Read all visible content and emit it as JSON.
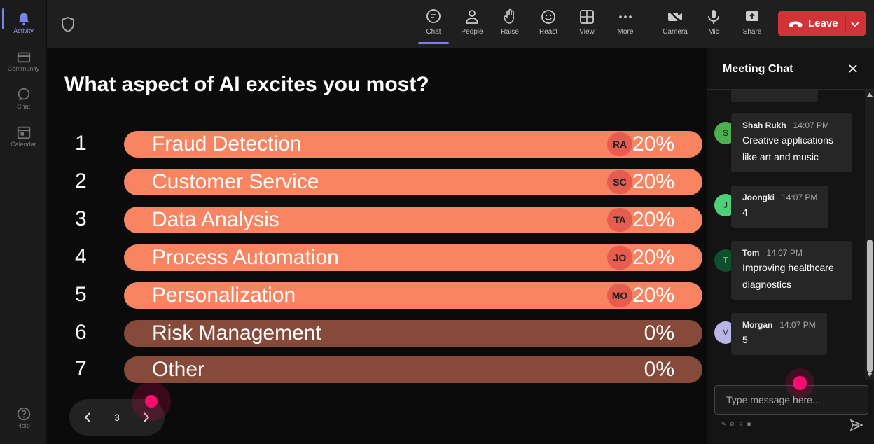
{
  "rail": {
    "items": [
      {
        "label": "Activity",
        "icon": "bell-icon"
      },
      {
        "label": "Community",
        "icon": "community-icon"
      },
      {
        "label": "Chat",
        "icon": "chat-icon"
      },
      {
        "label": "Calendar",
        "icon": "calendar-icon"
      },
      {
        "label": "Help",
        "icon": "help-icon"
      }
    ]
  },
  "toolbar": {
    "buttons": [
      {
        "label": "Chat",
        "icon": "chat-icon"
      },
      {
        "label": "People",
        "icon": "people-icon"
      },
      {
        "label": "Raise",
        "icon": "raise-hand-icon"
      },
      {
        "label": "React",
        "icon": "smiley-icon"
      },
      {
        "label": "View",
        "icon": "view-grid-icon"
      },
      {
        "label": "More",
        "icon": "more-icon"
      },
      {
        "label": "Camera",
        "icon": "camera-off-icon"
      },
      {
        "label": "Mic",
        "icon": "mic-icon"
      },
      {
        "label": "Share",
        "icon": "share-icon"
      }
    ],
    "leave_label": "Leave"
  },
  "poll": {
    "question": "What aspect of AI excites you most?",
    "options": [
      {
        "num": "1",
        "label": "Fraud Detection",
        "badge": "RA",
        "pct": "20%"
      },
      {
        "num": "2",
        "label": "Customer Service",
        "badge": "SC",
        "pct": "20%"
      },
      {
        "num": "3",
        "label": "Data Analysis",
        "badge": "TA",
        "pct": "20%"
      },
      {
        "num": "4",
        "label": "Process Automation",
        "badge": "JO",
        "pct": "20%"
      },
      {
        "num": "5",
        "label": "Personalization",
        "badge": "MO",
        "pct": "20%"
      },
      {
        "num": "6",
        "label": "Risk Management",
        "badge": "",
        "pct": "0%"
      },
      {
        "num": "7",
        "label": "Other",
        "badge": "",
        "pct": "0%"
      }
    ],
    "page": "3"
  },
  "colors": {
    "selected_bar": "#f98462",
    "unselected_bar": "#854a3a",
    "accent": "#7b83eb",
    "leave": "#d13438"
  },
  "chat": {
    "title": "Meeting Chat",
    "messages": [
      {
        "initial": "S",
        "name": "Shah Rukh",
        "time": "14:07 PM",
        "text": "Creative applications like art and music",
        "color": "#4caf50"
      },
      {
        "initial": "J",
        "name": "Joongki",
        "time": "14:07 PM",
        "text": "4",
        "color": "#4cd17a"
      },
      {
        "initial": "T",
        "name": "Tom",
        "time": "14:07 PM",
        "text": "Improving healthcare diagnostics",
        "color": "#0e4f2e"
      },
      {
        "initial": "M",
        "name": "Morgan",
        "time": "14:07 PM",
        "text": "5",
        "color": "#b9b6e6"
      }
    ],
    "input_placeholder": "Type message here..."
  }
}
